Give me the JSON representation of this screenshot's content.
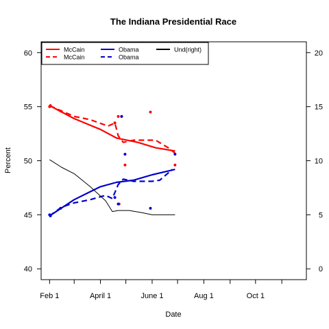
{
  "chart_data": {
    "type": "line",
    "title": "The Indiana Presidential Race",
    "xlabel": "Date",
    "ylabel": "Percent",
    "ylabel_right": "",
    "xlim": [
      "2008-01-22",
      "2008-11-30"
    ],
    "ylim": [
      39,
      61
    ],
    "ylim_right": [
      -1,
      21
    ],
    "x_ticks": [
      {
        "date": "2008-02-01",
        "label": "Feb 1"
      },
      {
        "date": "2008-03-01",
        "label": ""
      },
      {
        "date": "2008-04-01",
        "label": "April 1"
      },
      {
        "date": "2008-05-01",
        "label": ""
      },
      {
        "date": "2008-06-01",
        "label": "June 1"
      },
      {
        "date": "2008-07-01",
        "label": ""
      },
      {
        "date": "2008-08-01",
        "label": "Aug 1"
      },
      {
        "date": "2008-09-01",
        "label": ""
      },
      {
        "date": "2008-10-01",
        "label": "Oct 1"
      },
      {
        "date": "2008-11-01",
        "label": ""
      }
    ],
    "y_ticks": [
      40,
      45,
      50,
      55,
      60
    ],
    "y_ticks_right": [
      0,
      5,
      10,
      15,
      20
    ],
    "grid": false,
    "legend_position": "top-left",
    "legend": [
      {
        "label": "McCain",
        "color": "#ff0000",
        "style": "solid"
      },
      {
        "label": "McCain",
        "color": "#ff0000",
        "style": "dashed"
      },
      {
        "label": "Obama",
        "color": "#0000cc",
        "style": "solid"
      },
      {
        "label": "Obama",
        "color": "#0000cc",
        "style": "dashed"
      },
      {
        "label": "Und(right)",
        "color": "#000000",
        "style": "solid"
      }
    ],
    "series": [
      {
        "name": "McCain",
        "style": "solid",
        "color": "#ff0000",
        "axis": "left",
        "points": [
          [
            "2008-02-01",
            55.1
          ],
          [
            "2008-03-01",
            53.9
          ],
          [
            "2008-04-01",
            52.9
          ],
          [
            "2008-04-20",
            52.1
          ],
          [
            "2008-05-15",
            51.7
          ],
          [
            "2008-06-05",
            51.2
          ],
          [
            "2008-06-28",
            50.9
          ]
        ]
      },
      {
        "name": "McCain",
        "style": "dashed",
        "color": "#ff0000",
        "axis": "left",
        "points": [
          [
            "2008-02-01",
            55.1
          ],
          [
            "2008-02-15",
            54.6
          ],
          [
            "2008-03-01",
            54.1
          ],
          [
            "2008-03-20",
            53.8
          ],
          [
            "2008-04-10",
            53.2
          ],
          [
            "2008-04-18",
            53.5
          ],
          [
            "2008-04-22",
            52.3
          ],
          [
            "2008-04-28",
            51.7
          ],
          [
            "2008-05-10",
            51.9
          ],
          [
            "2008-05-25",
            51.9
          ],
          [
            "2008-06-05",
            51.9
          ],
          [
            "2008-06-20",
            51.2
          ],
          [
            "2008-06-28",
            50.7
          ]
        ]
      },
      {
        "name": "Obama",
        "style": "solid",
        "color": "#0000cc",
        "axis": "left",
        "points": [
          [
            "2008-02-01",
            44.9
          ],
          [
            "2008-03-01",
            46.4
          ],
          [
            "2008-04-01",
            47.6
          ],
          [
            "2008-04-20",
            48.0
          ],
          [
            "2008-05-10",
            48.2
          ],
          [
            "2008-06-01",
            48.7
          ],
          [
            "2008-06-28",
            49.2
          ]
        ]
      },
      {
        "name": "Obama",
        "style": "dashed",
        "color": "#0000cc",
        "axis": "left",
        "points": [
          [
            "2008-02-01",
            44.9
          ],
          [
            "2008-02-15",
            45.7
          ],
          [
            "2008-03-01",
            46.1
          ],
          [
            "2008-03-20",
            46.4
          ],
          [
            "2008-04-07",
            46.8
          ],
          [
            "2008-04-15",
            46.5
          ],
          [
            "2008-04-22",
            47.8
          ],
          [
            "2008-04-28",
            48.3
          ],
          [
            "2008-05-10",
            48.1
          ],
          [
            "2008-06-01",
            48.1
          ],
          [
            "2008-06-10",
            48.2
          ],
          [
            "2008-06-25",
            49.2
          ]
        ]
      },
      {
        "name": "Und(right)",
        "style": "solid",
        "color": "#000000",
        "axis": "right",
        "points": [
          [
            "2008-02-01",
            10.1
          ],
          [
            "2008-02-15",
            9.4
          ],
          [
            "2008-03-01",
            8.8
          ],
          [
            "2008-03-20",
            7.6
          ],
          [
            "2008-04-07",
            6.3
          ],
          [
            "2008-04-15",
            5.3
          ],
          [
            "2008-04-22",
            5.4
          ],
          [
            "2008-05-05",
            5.4
          ],
          [
            "2008-05-20",
            5.2
          ],
          [
            "2008-06-01",
            5.0
          ],
          [
            "2008-06-15",
            5.0
          ],
          [
            "2008-06-28",
            5.0
          ]
        ]
      }
    ],
    "points": [
      {
        "name": "McCain",
        "color": "#ff0000",
        "values": [
          [
            "2008-02-01",
            55.0
          ],
          [
            "2008-02-02",
            55.1
          ],
          [
            "2008-02-14",
            54.6
          ],
          [
            "2008-04-18",
            53.5
          ],
          [
            "2008-04-22",
            54.1
          ],
          [
            "2008-04-26",
            54.1
          ],
          [
            "2008-04-23",
            46.0
          ],
          [
            "2008-04-30",
            49.6
          ],
          [
            "2008-05-30",
            54.5
          ],
          [
            "2008-06-28",
            49.6
          ]
        ]
      },
      {
        "name": "Obama",
        "color": "#0000cc",
        "values": [
          [
            "2008-02-01",
            45.0
          ],
          [
            "2008-02-02",
            44.9
          ],
          [
            "2008-02-14",
            45.6
          ],
          [
            "2008-04-18",
            46.6
          ],
          [
            "2008-04-22",
            46.0
          ],
          [
            "2008-04-26",
            54.1
          ],
          [
            "2008-04-30",
            50.6
          ],
          [
            "2008-05-30",
            45.6
          ],
          [
            "2008-06-28",
            50.6
          ]
        ]
      }
    ]
  }
}
